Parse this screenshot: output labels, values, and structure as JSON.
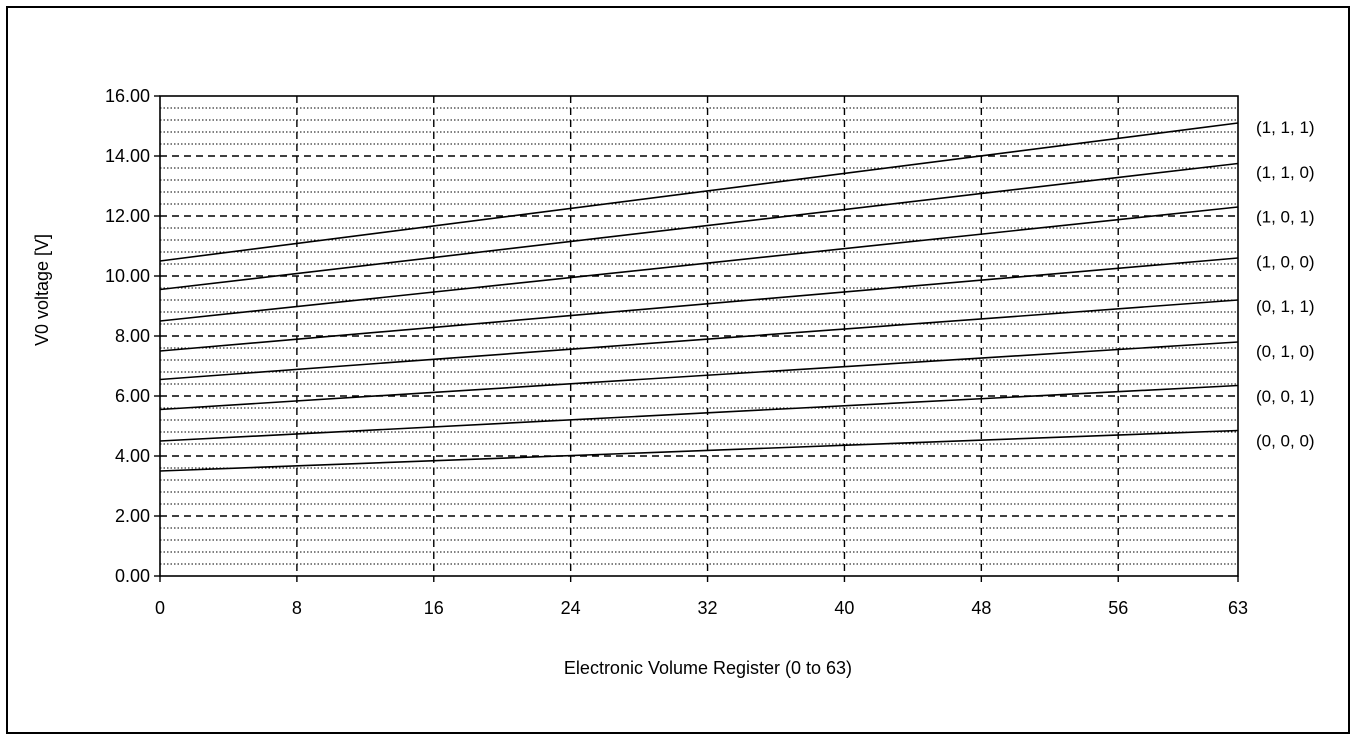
{
  "chart_data": {
    "type": "line",
    "title": "",
    "xlabel": "Electronic Volume Register (0 to 63)",
    "ylabel": "V0 voltage [V]",
    "xlim": [
      0,
      63
    ],
    "ylim": [
      0,
      16
    ],
    "x_ticks": [
      0,
      8,
      16,
      24,
      32,
      40,
      48,
      56,
      63
    ],
    "y_ticks": [
      0,
      2,
      4,
      6,
      8,
      10,
      12,
      14,
      16
    ],
    "y_tick_labels": [
      "0.00",
      "2.00",
      "4.00",
      "6.00",
      "8.00",
      "10.00",
      "12.00",
      "14.00",
      "16.00"
    ],
    "grid": {
      "major_y_dashed_every": 2,
      "minor_y_dotted_every": 0.4,
      "x_dashed": true
    },
    "colors": {
      "line": "#000000",
      "grid": "#000000",
      "background": "#ffffff"
    },
    "series": [
      {
        "name": "(1, 1, 1)",
        "x": [
          0,
          63
        ],
        "values": [
          10.5,
          15.1
        ]
      },
      {
        "name": "(1, 1, 0)",
        "x": [
          0,
          63
        ],
        "values": [
          9.55,
          13.75
        ]
      },
      {
        "name": "(1, 0, 1)",
        "x": [
          0,
          63
        ],
        "values": [
          8.5,
          12.3
        ]
      },
      {
        "name": "(1, 0, 0)",
        "x": [
          0,
          63
        ],
        "values": [
          7.5,
          10.6
        ]
      },
      {
        "name": "(0, 1, 1)",
        "x": [
          0,
          63
        ],
        "values": [
          6.55,
          9.2
        ]
      },
      {
        "name": "(0, 1, 0)",
        "x": [
          0,
          63
        ],
        "values": [
          5.55,
          7.8
        ]
      },
      {
        "name": "(0, 0, 1)",
        "x": [
          0,
          63
        ],
        "values": [
          4.5,
          6.35
        ]
      },
      {
        "name": "(0, 0, 0)",
        "x": [
          0,
          63
        ],
        "values": [
          3.5,
          4.85
        ]
      }
    ]
  }
}
